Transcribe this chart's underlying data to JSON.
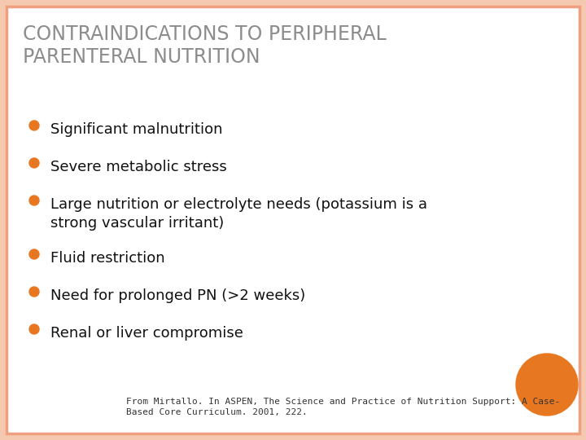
{
  "title_line1": "CONTRAINDICATIONS TO PERIPHERAL",
  "title_line2": "PARENTERAL NUTRITION",
  "title_color": "#8C8C8C",
  "title_fontsize": 17,
  "bullet_color": "#E87722",
  "bullet_text_color": "#111111",
  "bullet_fontsize": 13,
  "bullets": [
    "Significant malnutrition",
    "Severe metabolic stress",
    "Large nutrition or electrolyte needs (potassium is a\nstrong vascular irritant)",
    "Fluid restriction",
    "Need for prolonged PN (>2 weeks)",
    "Renal or liver compromise"
  ],
  "footnote": "From Mirtallo. In ASPEN, The Science and Practice of Nutrition Support: A Case-\nBased Core Curriculum. 2001, 222.",
  "footnote_fontsize": 8,
  "footnote_color": "#333333",
  "background_color": "#FFFFFF",
  "border_color": "#F0A080",
  "orange_circle_color": "#E87722",
  "slide_bg": "#F5C8B0"
}
